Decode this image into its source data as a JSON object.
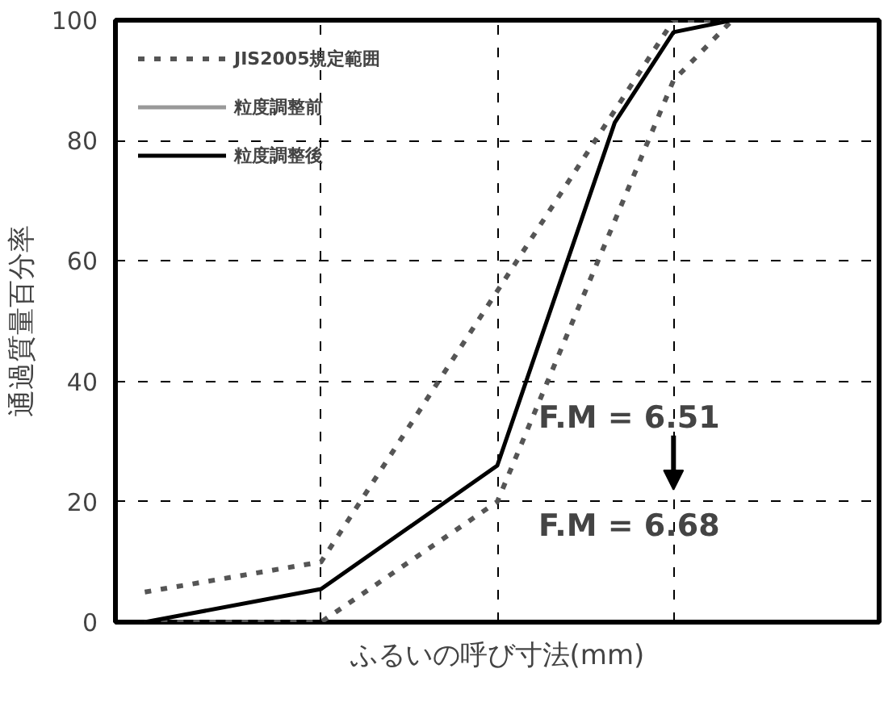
{
  "chart_data": {
    "type": "line",
    "xlabel": "ふるいの呼び寸法(mm)",
    "ylabel": "通過質量百分率",
    "categories": [
      null,
      null,
      null,
      null,
      null,
      null,
      null,
      null,
      null,
      null,
      null,
      null,
      null
    ],
    "ylim": [
      0,
      100
    ],
    "yticks": [
      0,
      20,
      40,
      60,
      80,
      100
    ],
    "grid": true,
    "legend": "top left",
    "tick_labels": "y",
    "series": [
      {
        "name": "JIS2005規定範囲",
        "color": "#555555",
        "line_style": "dotted",
        "values": [
          5,
          null,
          null,
          10,
          null,
          null,
          55,
          null,
          null,
          100,
          100,
          null,
          null
        ]
      },
      {
        "color": "#555555",
        "line_style": "dotted",
        "values": [
          0,
          null,
          null,
          0,
          null,
          null,
          20,
          null,
          null,
          90,
          100,
          null,
          null
        ]
      },
      {
        "name": "粒度調整前",
        "color": "#999999",
        "line_style": "solid",
        "values": [
          null,
          null,
          null,
          null,
          null,
          null,
          null,
          null,
          null,
          null,
          null,
          null,
          null
        ]
      },
      {
        "name": "粒度調整後",
        "color": "#000000",
        "line_style": "solid",
        "values": [
          0,
          null,
          null,
          5.5,
          null,
          null,
          26,
          null,
          83,
          98,
          100,
          null,
          null
        ]
      }
    ],
    "annotations": [
      "F.M = 6.51",
      "F.M = 6.68"
    ]
  }
}
